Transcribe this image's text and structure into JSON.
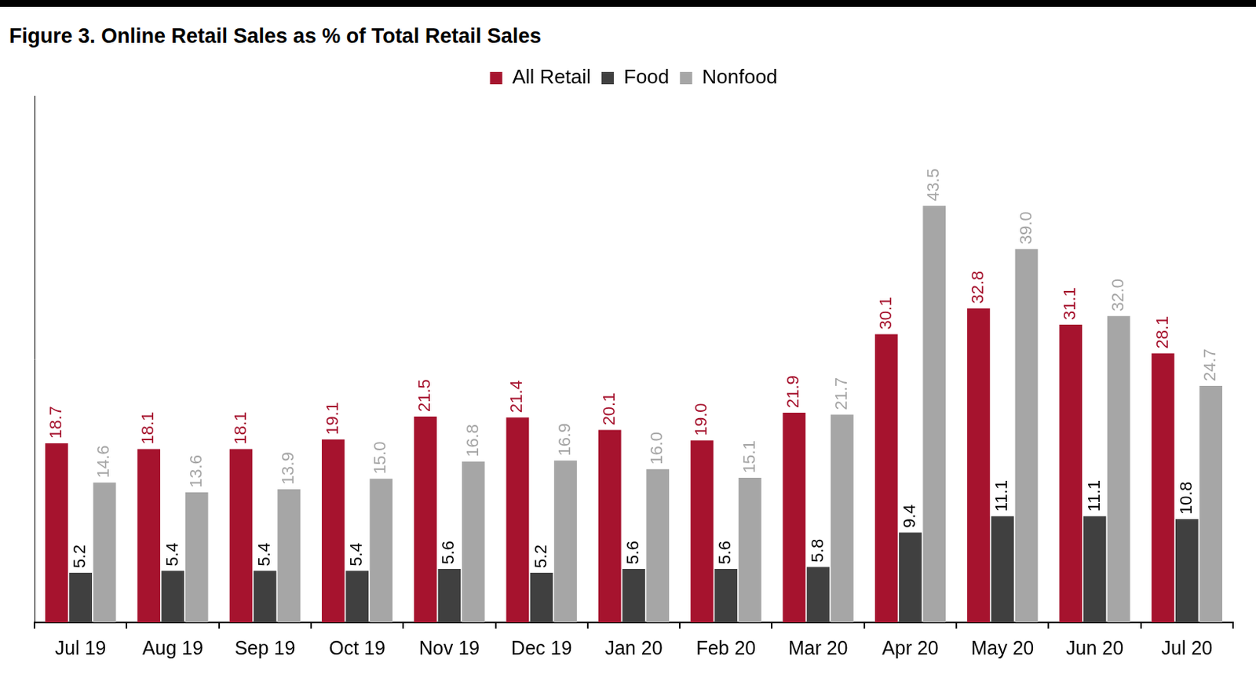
{
  "chart_data": {
    "type": "bar",
    "title": "Figure 3. Online Retail Sales as % of Total Retail Sales",
    "categories": [
      "Jul 19",
      "Aug 19",
      "Sep 19",
      "Oct 19",
      "Nov 19",
      "Dec 19",
      "Jan 20",
      "Feb 20",
      "Mar 20",
      "Apr 20",
      "May 20",
      "Jun 20",
      "Jul 20"
    ],
    "series": [
      {
        "name": "All Retail",
        "color": "#A6132E",
        "values": [
          18.7,
          18.1,
          18.1,
          19.1,
          21.5,
          21.4,
          20.1,
          19.0,
          21.9,
          30.1,
          32.8,
          31.1,
          28.1
        ],
        "value_labels": [
          "18.7",
          "18.1",
          "18.1",
          "19.1",
          "21.5",
          "21.4",
          "20.1",
          "19.0",
          "21.9",
          "30.1",
          "32.8",
          "31.1",
          "28.1"
        ]
      },
      {
        "name": "Food",
        "color": "#404040",
        "values": [
          5.2,
          5.4,
          5.4,
          5.4,
          5.6,
          5.2,
          5.6,
          5.6,
          5.8,
          9.4,
          11.1,
          11.1,
          10.8
        ],
        "value_labels": [
          "5.2",
          "5.4",
          "5.4",
          "5.4",
          "5.6",
          "5.2",
          "5.6",
          "5.6",
          "5.8",
          "9.4",
          "11.1",
          "11.1",
          "10.8"
        ]
      },
      {
        "name": "Nonfood",
        "color": "#A6A6A6",
        "values": [
          14.6,
          13.6,
          13.9,
          15.0,
          16.8,
          16.9,
          16.0,
          15.1,
          21.7,
          43.5,
          39.0,
          32.0,
          24.7
        ],
        "value_labels": [
          "14.6",
          "13.6",
          "13.9",
          "15.0",
          "16.8",
          "16.9",
          "16.0",
          "15.1",
          "21.7",
          "43.5",
          "39.0",
          "32.0",
          "24.7"
        ]
      }
    ],
    "ylim": [
      0,
      55
    ],
    "grid": false,
    "legend": "top",
    "data_labels": true,
    "tick_labels": "x"
  }
}
